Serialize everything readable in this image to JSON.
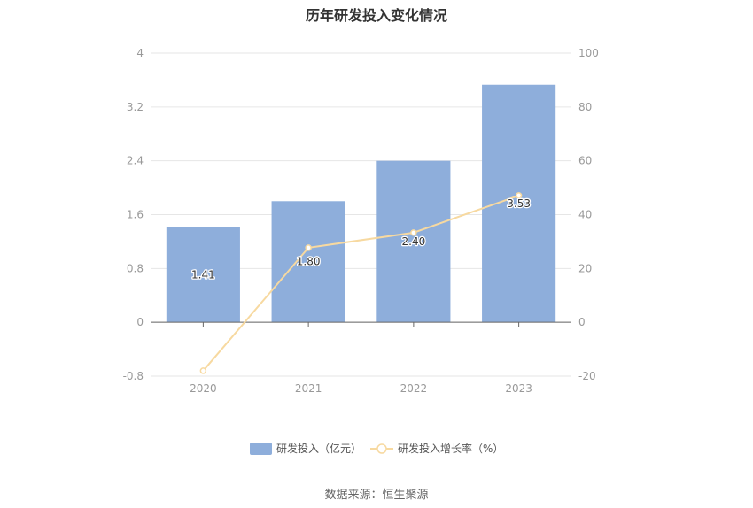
{
  "chart_data": {
    "type": "bar",
    "title": "历年研发投入变化情况",
    "categories": [
      "2020",
      "2021",
      "2022",
      "2023"
    ],
    "series": [
      {
        "name": "研发投入（亿元）",
        "type": "bar",
        "axis": "left",
        "values": [
          1.41,
          1.8,
          2.4,
          3.53
        ],
        "labels": [
          "1.41",
          "1.80",
          "2.40",
          "3.53"
        ],
        "color": "#8eaedb"
      },
      {
        "name": "研发投入增长率（%）",
        "type": "line",
        "axis": "right",
        "values": [
          -18,
          27.7,
          33.3,
          47.1
        ],
        "color": "#f7d9a0"
      }
    ],
    "y_left": {
      "range": [
        -0.8,
        4
      ],
      "ticks": [
        "4",
        "3.2",
        "2.4",
        "1.6",
        "0.8",
        "0",
        "-0.8"
      ]
    },
    "y_right": {
      "range": [
        -20,
        100
      ],
      "ticks": [
        "100",
        "80",
        "60",
        "40",
        "20",
        "0",
        "-20"
      ]
    },
    "grid": true,
    "legend_position": "bottom",
    "source": "数据来源：恒生聚源"
  }
}
